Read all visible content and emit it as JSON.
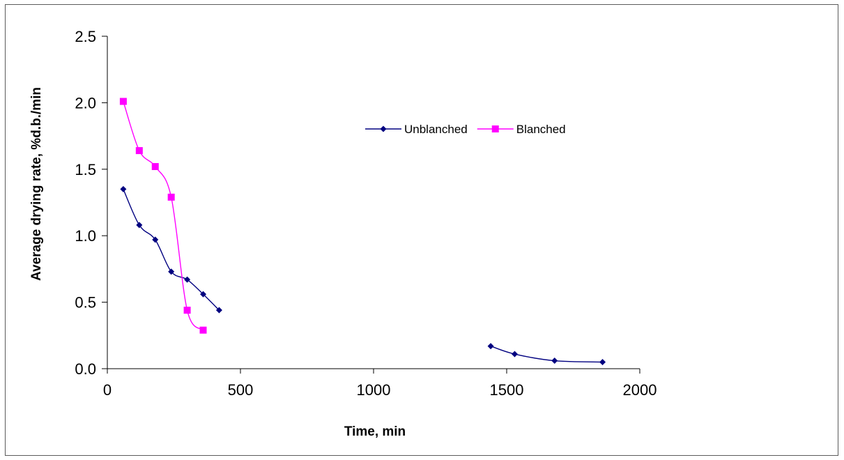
{
  "chart_data": {
    "type": "line",
    "title": "",
    "xlabel": "Time, min",
    "ylabel": "Average drying rate, %d.b./min",
    "xlim": [
      0,
      2000
    ],
    "ylim": [
      0,
      2.5
    ],
    "x_ticks": [
      0,
      500,
      1000,
      1500,
      2000
    ],
    "y_ticks": [
      0.0,
      0.5,
      1.0,
      1.5,
      2.0,
      2.5
    ],
    "y_tick_labels": [
      "0.0",
      "0.5",
      "1.0",
      "1.5",
      "2.0",
      "2.5"
    ],
    "grid": false,
    "legend_position": "upper-center",
    "series": [
      {
        "name": "Unblanched",
        "color": "#000080",
        "marker": "diamond",
        "segments": [
          [
            [
              60,
              1.35
            ],
            [
              120,
              1.08
            ],
            [
              180,
              0.97
            ],
            [
              240,
              0.73
            ],
            [
              300,
              0.67
            ],
            [
              360,
              0.56
            ],
            [
              420,
              0.44
            ]
          ],
          [
            [
              1440,
              0.17
            ],
            [
              1530,
              0.11
            ],
            [
              1680,
              0.06
            ],
            [
              1860,
              0.05
            ]
          ]
        ]
      },
      {
        "name": "Blanched",
        "color": "#ff00ff",
        "marker": "square",
        "segments": [
          [
            [
              60,
              2.01
            ],
            [
              120,
              1.64
            ],
            [
              180,
              1.52
            ],
            [
              240,
              1.29
            ],
            [
              300,
              0.44
            ],
            [
              360,
              0.29
            ]
          ]
        ]
      }
    ]
  }
}
